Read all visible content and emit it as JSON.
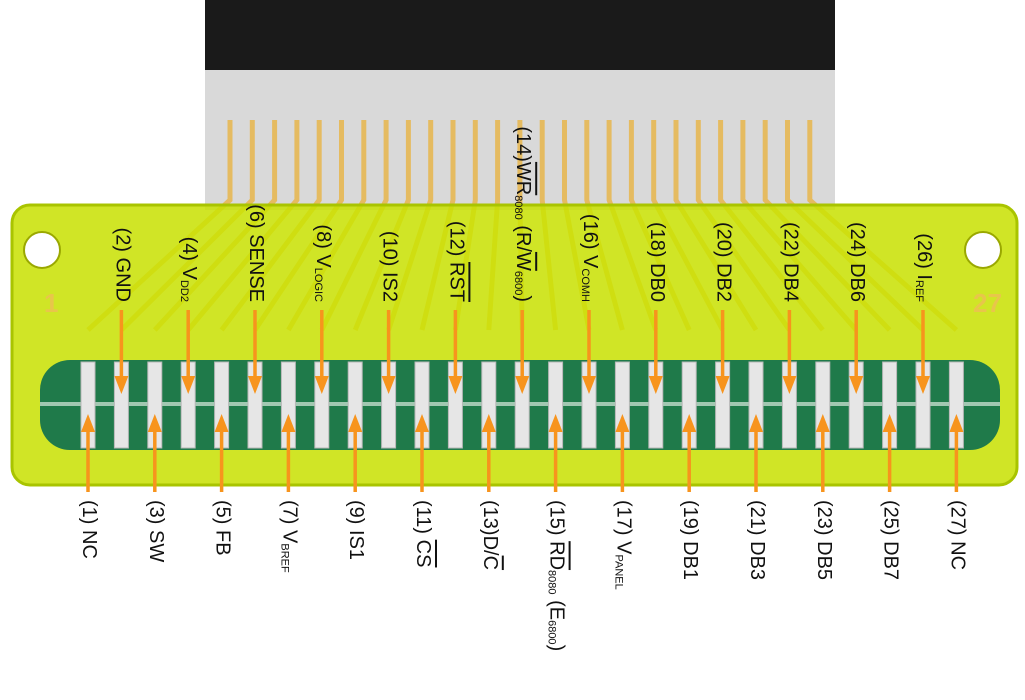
{
  "colors": {
    "arrow": "#f7941d",
    "board": "#c8e000",
    "board_edge": "#a9c400",
    "contact_bed": "#1f7a4a",
    "contact": "#e6e6e6",
    "trace": "#f0a400",
    "film": "#d9d9d9",
    "film_dark": "#1a1a1a",
    "pin_mark": "#e8c64a"
  },
  "board_marks": {
    "left": "1",
    "right": "27"
  },
  "top_pins": [
    {
      "num": "(2)",
      "parts": [
        {
          "t": " GND"
        }
      ]
    },
    {
      "num": "(4)",
      "parts": [
        {
          "t": " V"
        },
        {
          "t": "DD2",
          "sub": true
        }
      ]
    },
    {
      "num": "(6)",
      "parts": [
        {
          "t": " SENSE"
        }
      ]
    },
    {
      "num": "(8)",
      "parts": [
        {
          "t": " V"
        },
        {
          "t": "LOGIC",
          "sub": true
        }
      ]
    },
    {
      "num": "(10)",
      "parts": [
        {
          "t": " IS2"
        }
      ]
    },
    {
      "num": "(12)",
      "parts": [
        {
          "t": " "
        },
        {
          "t": "RST",
          "ovl": true
        }
      ]
    },
    {
      "num": "(14)",
      "parts": [
        {
          "t": "WR",
          "ovl": true
        },
        {
          "t": "8080",
          "sub": true
        },
        {
          "t": " (R/"
        },
        {
          "t": "W",
          "ovl": true
        },
        {
          "t": "6800",
          "sub": true
        },
        {
          "t": ")"
        }
      ]
    },
    {
      "num": "(16)",
      "parts": [
        {
          "t": " V"
        },
        {
          "t": "COMH",
          "sub": true
        }
      ]
    },
    {
      "num": "(18)",
      "parts": [
        {
          "t": " DB0"
        }
      ]
    },
    {
      "num": "(20)",
      "parts": [
        {
          "t": " DB2"
        }
      ]
    },
    {
      "num": "(22)",
      "parts": [
        {
          "t": " DB4"
        }
      ]
    },
    {
      "num": "(24)",
      "parts": [
        {
          "t": " DB6"
        }
      ]
    },
    {
      "num": "(26)",
      "parts": [
        {
          "t": " I"
        },
        {
          "t": "REF",
          "sub": true
        }
      ]
    }
  ],
  "bottom_pins": [
    {
      "num": "(1)",
      "parts": [
        {
          "t": " NC"
        }
      ]
    },
    {
      "num": "(3)",
      "parts": [
        {
          "t": " SW"
        }
      ]
    },
    {
      "num": "(5)",
      "parts": [
        {
          "t": " FB"
        }
      ]
    },
    {
      "num": "(7)",
      "parts": [
        {
          "t": " V"
        },
        {
          "t": "BREF",
          "sub": true
        }
      ]
    },
    {
      "num": "(9)",
      "parts": [
        {
          "t": " IS1"
        }
      ]
    },
    {
      "num": "(11)",
      "parts": [
        {
          "t": " "
        },
        {
          "t": "CS",
          "ovl": true
        }
      ]
    },
    {
      "num": "(13)",
      "parts": [
        {
          "t": "D/"
        },
        {
          "t": "C",
          "ovl": true
        }
      ]
    },
    {
      "num": "(15)",
      "parts": [
        {
          "t": " "
        },
        {
          "t": "RD",
          "ovl": true
        },
        {
          "t": "8080",
          "sub": true
        },
        {
          "t": " (E"
        },
        {
          "t": "6800",
          "sub": true
        },
        {
          "t": ")"
        }
      ]
    },
    {
      "num": "(17)",
      "parts": [
        {
          "t": " V"
        },
        {
          "t": "PANEL",
          "sub": true
        }
      ]
    },
    {
      "num": "(19)",
      "parts": [
        {
          "t": " DB1"
        }
      ]
    },
    {
      "num": "(21)",
      "parts": [
        {
          "t": " DB3"
        }
      ]
    },
    {
      "num": "(23)",
      "parts": [
        {
          "t": " DB5"
        }
      ]
    },
    {
      "num": "(25)",
      "parts": [
        {
          "t": " DB7"
        }
      ]
    },
    {
      "num": "(27)",
      "parts": [
        {
          "t": " NC"
        }
      ]
    }
  ]
}
